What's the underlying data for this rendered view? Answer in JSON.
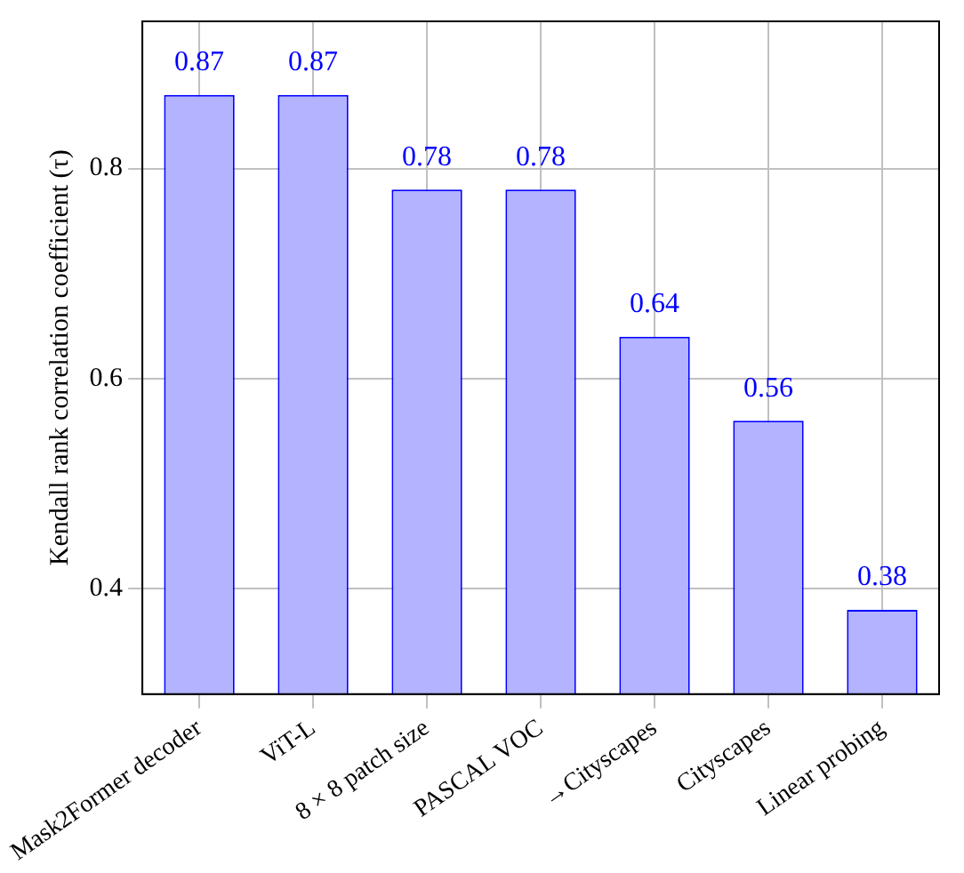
{
  "chart_data": {
    "type": "bar",
    "ylabel": "Kendall rank correlation coefficient (τ)",
    "categories": [
      "Mask2Former decoder",
      "ViT-L",
      "8 × 8 patch size",
      "PASCAL VOC",
      "→Cityscapes",
      "Cityscapes",
      "Linear probing"
    ],
    "values": [
      0.87,
      0.87,
      0.78,
      0.78,
      0.64,
      0.56,
      0.38
    ],
    "color": "#b3b3ff",
    "ylim": [
      0.3,
      0.94
    ],
    "yticks": [
      0.4,
      0.6,
      0.8
    ],
    "grid": true,
    "data_labels": true
  }
}
